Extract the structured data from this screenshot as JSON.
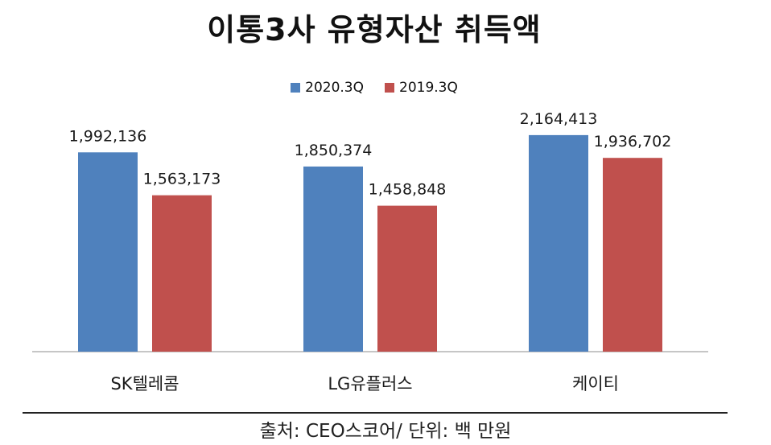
{
  "chart_data": {
    "type": "bar",
    "title": "이통3사 유형자산 취득액",
    "categories": [
      "SK텔레콤",
      "LG유플러스",
      "케이티"
    ],
    "series": [
      {
        "name": "2020.3Q",
        "color": "#4f81bd",
        "values": [
          1992136,
          1850374,
          2164413
        ],
        "labels": [
          "1,992,136",
          "1,850,374",
          "2,164,413"
        ]
      },
      {
        "name": "2019.3Q",
        "color": "#c0504d",
        "values": [
          1563173,
          1458848,
          1936702
        ],
        "labels": [
          "1,563,173",
          "1,458,848",
          "1,936,702"
        ]
      }
    ],
    "legend_position": "top",
    "grid": false,
    "ylim": [
      0,
      2630000
    ]
  },
  "source_text": "출처: CEO스코어/ 단위: 백 만원"
}
